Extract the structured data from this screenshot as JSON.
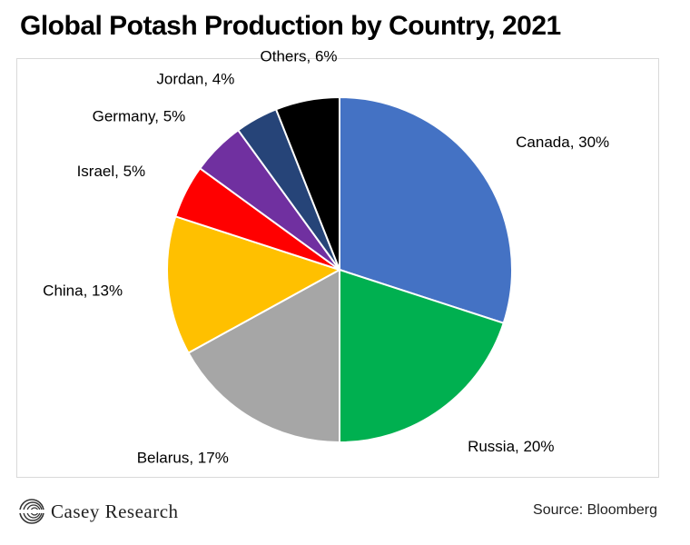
{
  "title": "Global Potash Production by Country, 2021",
  "source": "Source: Bloomberg",
  "logo_text": "Casey Research",
  "chart_data": {
    "type": "pie",
    "title": "Global Potash Production by Country, 2021",
    "unit": "%",
    "legend": "none",
    "slices": [
      {
        "name": "Canada",
        "value": 30,
        "label": "Canada, 30%",
        "color": "#4472C4"
      },
      {
        "name": "Russia",
        "value": 20,
        "label": "Russia, 20%",
        "color": "#00B050"
      },
      {
        "name": "Belarus",
        "value": 17,
        "label": "Belarus, 17%",
        "color": "#A6A6A6"
      },
      {
        "name": "China",
        "value": 13,
        "label": "China, 13%",
        "color": "#FFC000"
      },
      {
        "name": "Israel",
        "value": 5,
        "label": "Israel, 5%",
        "color": "#FF0000"
      },
      {
        "name": "Germany",
        "value": 5,
        "label": "Germany, 5%",
        "color": "#7030A0"
      },
      {
        "name": "Jordan",
        "value": 4,
        "label": "Jordan, 4%",
        "color": "#264478"
      },
      {
        "name": "Others",
        "value": 6,
        "label": "Others, 6%",
        "color": "#000000"
      }
    ]
  }
}
